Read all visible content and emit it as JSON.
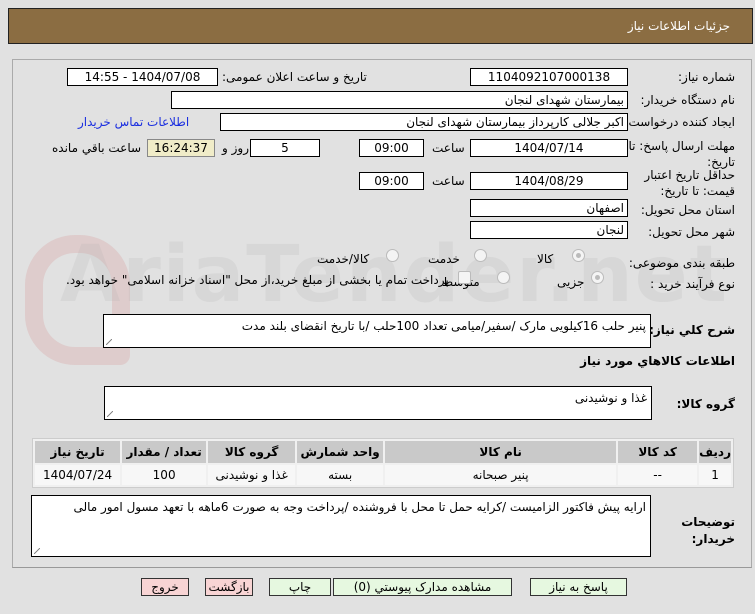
{
  "header": {
    "title": "جزئیات اطلاعات نیاز"
  },
  "watermark": "AriaTender.net",
  "form": {
    "need_number_label": "شماره نیاز:",
    "need_number": "1104092107000138",
    "announce_label": "تاریخ و ساعت اعلان عمومی:",
    "announce_value": "1404/07/08 - 14:55",
    "buyer_label": "نام دستگاه خریدار:",
    "buyer": "بیمارستان شهدای لنجان",
    "creator_label": "ایجاد کننده درخواست:",
    "creator": "اکبر جلالی کارپرداز بیمارستان شهدای لنجان",
    "contact_link": "اطلاعات تماس خریدار",
    "deadline_label": "مهلت ارسال پاسخ: تا تاریخ:",
    "deadline_date": "1404/07/14",
    "time_label": "ساعت",
    "deadline_time": "09:00",
    "days": "5",
    "days_label": "روز و",
    "remaining": "16:24:37",
    "remaining_label": "ساعت باقي مانده",
    "validity_label": "حداقل تاریخ اعتبار قیمت: تا تاریخ:",
    "validity_date": "1404/08/29",
    "validity_time": "09:00",
    "province_label": "استان محل تحویل:",
    "province": "اصفهان",
    "city_label": "شهر محل تحویل:",
    "city": "لنجان",
    "category_label": "طبقه بندی موضوعی:",
    "category_options": [
      "کالا",
      "خدمت",
      "کالا/خدمت"
    ],
    "category_selected": "کالا",
    "process_label": "نوع فرآیند خرید :",
    "process_options": [
      "جزیی",
      "متوسط"
    ],
    "process_selected": "جزیی",
    "payment_note": "پرداخت تمام یا بخشی از مبلغ خرید،از محل \"اسناد خزانه اسلامی\" خواهد بود.",
    "desc_label": "شرح کلي نیاز:",
    "desc": "پنیر حلب 16کیلویی مارک /سفیر/میامی تعداد 100حلب /با تاریخ انقضای بلند مدت",
    "goods_heading": "اطلاعات کالاهاي مورد نیاز",
    "group_label": "گروه کالا:",
    "group": "غذا و نوشیدنی",
    "notes_label": "توضیحات خریدار:",
    "notes": "ارایه پیش فاکتور الزامیست /کرایه حمل تا محل با فروشنده /پرداخت وجه به صورت 6ماهه  با تعهد مسول امور مالی"
  },
  "table": {
    "headers": [
      "ردیف",
      "کد کالا",
      "نام کالا",
      "واحد شمارش",
      "گروه کالا",
      "تعداد / مقدار",
      "تاریخ نیاز"
    ],
    "rows": [
      [
        "1",
        "--",
        "پنیر صبحانه",
        "بسته",
        "غذا و نوشیدنی",
        "100",
        "1404/07/24"
      ]
    ]
  },
  "buttons": {
    "reply": "پاسخ به نیاز",
    "attachments": "مشاهده مدارک پیوستي (0)",
    "print": "چاپ",
    "back": "بازگشت",
    "exit": "خروج"
  }
}
